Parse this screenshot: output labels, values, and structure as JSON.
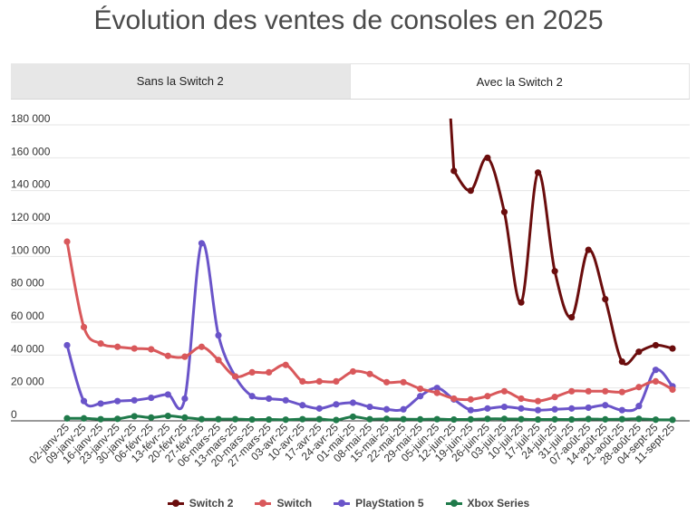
{
  "chart_data": {
    "type": "line",
    "title": "Évolution des ventes de consoles en 2025",
    "tabs": [
      {
        "label": "Sans la Switch 2",
        "active": false
      },
      {
        "label": "Avec la Switch 2",
        "active": true
      }
    ],
    "ylim": [
      0,
      180000
    ],
    "yticks": [
      "0",
      "20 000",
      "40 000",
      "60 000",
      "80 000",
      "100 000",
      "120 000",
      "140 000",
      "160 000",
      "180 000"
    ],
    "ytick_values": [
      0,
      20000,
      40000,
      60000,
      80000,
      100000,
      120000,
      140000,
      160000,
      180000
    ],
    "grid": true,
    "legend_position": "bottom",
    "categories": [
      "02-janv-25",
      "09-janv-25",
      "16-janv-25",
      "23-janv-25",
      "30-janv-25",
      "06-févr-25",
      "13-févr-25",
      "20-févr-25",
      "27-févr-25",
      "06-mars-25",
      "13-mars-25",
      "20-mars-25",
      "27-mars-25",
      "03-avr-25",
      "10-avr-25",
      "17-avr-25",
      "24-avr-25",
      "01-mai-25",
      "08-mai-25",
      "15-mai-25",
      "22-mai-25",
      "29-mai-25",
      "05-juin-25",
      "12-juin-25",
      "19-juin-25",
      "26-juin-25",
      "03-juil-25",
      "10-juil-25",
      "17-juil-25",
      "24-juil-25",
      "31-juil-25",
      "07-août-25",
      "14-août-25",
      "21-août-25",
      "28-août-25",
      "04-sept-25",
      "11-sept-25"
    ],
    "series": [
      {
        "name": "Switch 2",
        "color": "#6b0d0d",
        "values": [
          null,
          null,
          null,
          null,
          null,
          null,
          null,
          null,
          null,
          null,
          null,
          null,
          null,
          null,
          null,
          null,
          null,
          null,
          null,
          null,
          null,
          null,
          null,
          152000,
          140000,
          160000,
          127000,
          72000,
          151000,
          91000,
          63000,
          104000,
          74000,
          36000,
          42000,
          46000,
          44000
        ]
      },
      {
        "name": "Switch",
        "color": "#d9585b",
        "values": [
          109000,
          57000,
          47000,
          45000,
          44000,
          43500,
          39500,
          39000,
          45000,
          37000,
          27000,
          29500,
          29500,
          34000,
          24000,
          24000,
          24000,
          30000,
          28500,
          23500,
          23500,
          19500,
          17000,
          13500,
          13000,
          15000,
          18000,
          13500,
          12000,
          14500,
          18000,
          18000,
          18000,
          17500,
          20500,
          24000,
          19000
        ]
      },
      {
        "name": "PlayStation 5",
        "color": "#6a54c9",
        "values": [
          46000,
          12000,
          10500,
          12000,
          12500,
          14000,
          16000,
          13500,
          108000,
          52000,
          27000,
          15000,
          13500,
          12500,
          9500,
          7500,
          10000,
          11000,
          8500,
          7000,
          7000,
          15000,
          20000,
          13000,
          6500,
          7500,
          8500,
          7500,
          6500,
          7000,
          7500,
          8000,
          9500,
          6500,
          9000,
          31000,
          21000
        ]
      },
      {
        "name": "Xbox Series",
        "color": "#1f7a4a",
        "values": [
          1500,
          1500,
          1000,
          1200,
          2800,
          2000,
          3000,
          2000,
          1000,
          1000,
          1000,
          800,
          800,
          700,
          1000,
          1000,
          500,
          2500,
          1000,
          1200,
          1000,
          900,
          1000,
          800,
          900,
          1200,
          1200,
          1000,
          800,
          900,
          800,
          1100,
          900,
          1000,
          1200,
          700,
          600
        ]
      }
    ]
  }
}
